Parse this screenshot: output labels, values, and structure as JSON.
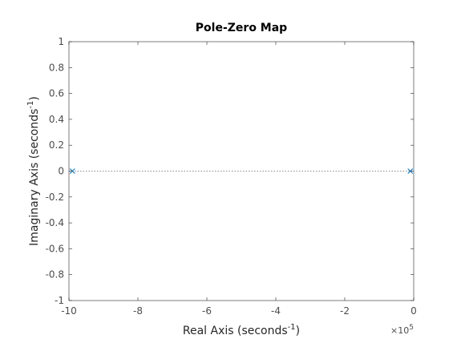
{
  "chart_data": {
    "type": "scatter",
    "title": "Pole-Zero Map",
    "xlabel": {
      "main": "Real Axis (seconds",
      "sup": "-1",
      "close": ")"
    },
    "ylabel": {
      "main": "Imaginary Axis (seconds",
      "sup": "-1",
      "close": ")"
    },
    "x_exponent": {
      "base": "×10",
      "power": "5"
    },
    "xlim": [
      -10,
      0
    ],
    "ylim": [
      -1,
      1
    ],
    "x_tick_values": [
      -10,
      -8,
      -6,
      -4,
      -2,
      0
    ],
    "x_tick_labels": [
      "-10",
      "-8",
      "-6",
      "-4",
      "-2",
      "0"
    ],
    "y_tick_values": [
      -1,
      -0.8,
      -0.6,
      -0.4,
      -0.2,
      0,
      0.2,
      0.4,
      0.6,
      0.8,
      1
    ],
    "y_tick_labels": [
      "-1",
      "-0.8",
      "-0.6",
      "-0.4",
      "-0.2",
      "0",
      "0.2",
      "0.4",
      "0.6",
      "0.8",
      "1"
    ],
    "x_scale_factor": 100000,
    "grid": false,
    "series": [
      {
        "marker": "x",
        "color": "#0072bd",
        "points": [
          {
            "x": -9.9,
            "y": 0
          },
          {
            "x": -0.1,
            "y": 0
          }
        ]
      }
    ],
    "reference_line": {
      "y": 0,
      "style": "dotted",
      "color": "#8c8c8c"
    }
  }
}
